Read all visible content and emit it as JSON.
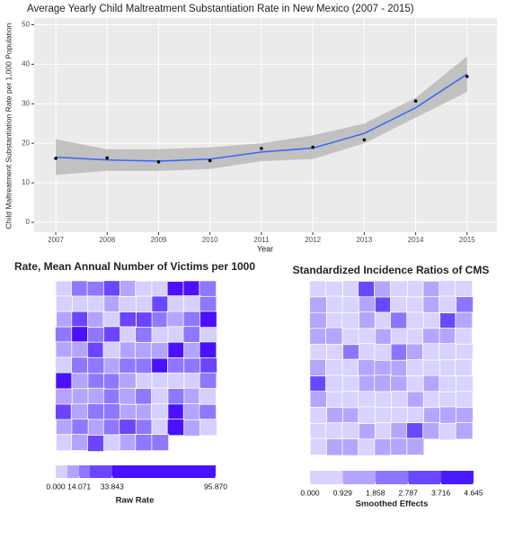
{
  "chart_data": [
    {
      "type": "line",
      "title": "Average Yearly Child Maltreatment Substantiation Rate in New Mexico (2007 - 2015)",
      "x_label": "Year",
      "y_label": "Child Maltreatment Substantiation Rate per 1,000 Population",
      "x": [
        2007,
        2008,
        2009,
        2010,
        2011,
        2012,
        2013,
        2014,
        2015
      ],
      "values": [
        16.2,
        16.3,
        15.3,
        15.6,
        18.7,
        19.0,
        20.9,
        30.7,
        36.9
      ],
      "fit": [
        16.5,
        15.8,
        15.5,
        16.0,
        17.8,
        18.8,
        22.5,
        29.0,
        37.5
      ],
      "band_lower": [
        12.0,
        13.0,
        13.0,
        13.5,
        15.5,
        16.0,
        20.0,
        26.5,
        33.0
      ],
      "band_upper": [
        21.0,
        18.5,
        18.5,
        19.0,
        20.0,
        22.0,
        25.0,
        31.5,
        42.0
      ],
      "color": "#3366ff",
      "point_color": "#000000",
      "band_color": "#b3b3b3",
      "xlim": [
        2006.58,
        2015.58
      ],
      "ylim": [
        -2.5,
        51.7
      ],
      "xticks": [
        2007,
        2008,
        2009,
        2010,
        2011,
        2012,
        2013,
        2014,
        2015
      ],
      "yticks": [
        0,
        10,
        20,
        30,
        40,
        50
      ],
      "grid": true
    },
    {
      "type": "map",
      "title": "Rate, Mean Annual Number of Victims per 1000",
      "legend": {
        "title": "Raw Rate",
        "lim": [
          0,
          95.87
        ],
        "ticks": [
          {
            "value": 0,
            "label": "0.000"
          },
          {
            "value": 14.071,
            "label": "14.071"
          },
          {
            "value": 33.843,
            "label": "33.843"
          },
          {
            "value": 95.87,
            "label": "95.870"
          }
        ],
        "colors": [
          "#d6d0ff",
          "#b3a5ff",
          "#8f78ff",
          "#6b45ff",
          "#4a10ff"
        ]
      }
    },
    {
      "type": "map",
      "title": "Standardized Incidence Ratios of CMS",
      "legend": {
        "title": "Smoothed Effects",
        "lim": [
          0,
          4.645
        ],
        "ticks": [
          {
            "value": 0,
            "label": "0.000"
          },
          {
            "value": 0.929,
            "label": "0.929"
          },
          {
            "value": 1.858,
            "label": "1.858"
          },
          {
            "value": 2.787,
            "label": "2.787"
          },
          {
            "value": 3.716,
            "label": "3.716"
          },
          {
            "value": 4.645,
            "label": "4.645"
          }
        ],
        "colors": [
          "#d8d4ff",
          "#b3a6ff",
          "#8c76ff",
          "#6a48ff",
          "#4a1aff"
        ]
      }
    }
  ]
}
